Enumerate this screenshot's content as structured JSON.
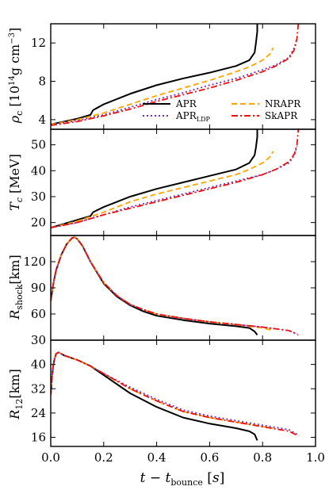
{
  "chart_data": {
    "type": "line",
    "shared_x": {
      "xlabel": "t − t_bounce [s]",
      "xlim": [
        0.0,
        1.0
      ],
      "xticks": [
        "0.0",
        "0.2",
        "0.4",
        "0.6",
        "0.8",
        "1.0"
      ]
    },
    "legend": {
      "placement": "inside panel 1, lower-right",
      "entries": [
        {
          "name": "APR",
          "color": "#000000",
          "dash": "solid"
        },
        {
          "name": "NRAPR",
          "color": "#FFA500",
          "dash": "dashed"
        },
        {
          "name": "APR_LDP",
          "color": "#7B2FB5",
          "dash": "dotted"
        },
        {
          "name": "SkAPR",
          "color": "#EE1111",
          "dash": "dashdot"
        }
      ]
    },
    "panels": [
      {
        "ylabel": "ρ_c [10^14 g cm^-3]",
        "ylim": [
          3,
          14
        ],
        "yticks": [
          4,
          8,
          12
        ],
        "series": [
          {
            "name": "APR",
            "x": [
              0.0,
              0.05,
              0.1,
              0.15,
              0.16,
              0.18,
              0.2,
              0.3,
              0.4,
              0.5,
              0.6,
              0.7,
              0.75,
              0.77,
              0.775,
              0.78,
              0.78
            ],
            "y": [
              3.5,
              3.8,
              4.1,
              4.5,
              5.0,
              5.3,
              5.6,
              6.7,
              7.6,
              8.3,
              8.9,
              9.6,
              10.2,
              11.0,
              12.0,
              13.2,
              14.0
            ]
          },
          {
            "name": "NRAPR",
            "x": [
              0.0,
              0.1,
              0.2,
              0.3,
              0.4,
              0.5,
              0.6,
              0.7,
              0.75,
              0.8,
              0.83,
              0.84
            ],
            "y": [
              3.5,
              4.0,
              4.7,
              5.6,
              6.5,
              7.3,
              8.1,
              9.0,
              9.5,
              10.2,
              10.9,
              11.5
            ]
          },
          {
            "name": "APR_LDP",
            "x": [
              0.0,
              0.1,
              0.2,
              0.3,
              0.4,
              0.5,
              0.6,
              0.7,
              0.8,
              0.85,
              0.9,
              0.92,
              0.93
            ],
            "y": [
              3.5,
              3.9,
              4.5,
              5.3,
              6.1,
              6.8,
              7.6,
              8.3,
              9.2,
              9.7,
              10.5,
              11.5,
              12.5
            ]
          },
          {
            "name": "SkAPR",
            "x": [
              0.0,
              0.1,
              0.2,
              0.3,
              0.4,
              0.5,
              0.6,
              0.7,
              0.8,
              0.85,
              0.9,
              0.92,
              0.93,
              0.935
            ],
            "y": [
              3.4,
              3.8,
              4.4,
              5.1,
              5.9,
              6.6,
              7.3,
              8.1,
              9.0,
              9.6,
              10.4,
              11.3,
              12.5,
              14.0
            ]
          }
        ]
      },
      {
        "ylabel": "T_c [MeV]",
        "ylim": [
          15,
          56
        ],
        "yticks": [
          20,
          30,
          40,
          50
        ],
        "series": [
          {
            "name": "APR",
            "x": [
              0.0,
              0.05,
              0.1,
              0.15,
              0.16,
              0.18,
              0.2,
              0.3,
              0.4,
              0.5,
              0.6,
              0.7,
              0.75,
              0.77,
              0.775,
              0.78,
              0.78
            ],
            "y": [
              18,
              19.5,
              21,
              22.5,
              24,
              25,
              26,
              30,
              33,
              35.5,
              38,
              40.5,
              43,
              46,
              49,
              53,
              56
            ]
          },
          {
            "name": "NRAPR",
            "x": [
              0.0,
              0.1,
              0.2,
              0.3,
              0.4,
              0.5,
              0.6,
              0.7,
              0.75,
              0.8,
              0.83,
              0.84
            ],
            "y": [
              18,
              20.5,
              24,
              28,
              31,
              33.5,
              36,
              38.5,
              40.5,
              43,
              45.5,
              47.5
            ]
          },
          {
            "name": "APR_LDP",
            "x": [
              0.0,
              0.1,
              0.2,
              0.3,
              0.4,
              0.5,
              0.6,
              0.7,
              0.8,
              0.85,
              0.9,
              0.92,
              0.93
            ],
            "y": [
              18,
              20,
              23,
              26,
              28.5,
              31,
              33.5,
              36,
              38.5,
              40.5,
              43,
              46,
              49.5
            ]
          },
          {
            "name": "SkAPR",
            "x": [
              0.0,
              0.1,
              0.2,
              0.3,
              0.4,
              0.5,
              0.6,
              0.7,
              0.8,
              0.85,
              0.9,
              0.92,
              0.93,
              0.935
            ],
            "y": [
              18,
              20,
              23,
              25.5,
              28,
              30.5,
              33,
              35.5,
              38.5,
              40.5,
              43.5,
              46.5,
              50,
              56
            ]
          }
        ]
      },
      {
        "ylabel": "R_shock [km]",
        "ylim": [
          30,
          150
        ],
        "yticks": [
          30,
          60,
          90,
          120
        ],
        "series": [
          {
            "name": "APR",
            "x": [
              0.0,
              0.01,
              0.02,
              0.04,
              0.06,
              0.08,
              0.09,
              0.1,
              0.12,
              0.15,
              0.2,
              0.25,
              0.3,
              0.35,
              0.4,
              0.5,
              0.6,
              0.7,
              0.75,
              0.77,
              0.78
            ],
            "y": [
              75,
              95,
              110,
              128,
              140,
              147,
              148,
              146,
              138,
              120,
              95,
              80,
              70,
              63,
              58,
              53,
              49,
              46,
              44,
              40,
              36
            ]
          },
          {
            "name": "NRAPR",
            "x": [
              0.0,
              0.01,
              0.02,
              0.04,
              0.06,
              0.08,
              0.09,
              0.1,
              0.12,
              0.15,
              0.2,
              0.25,
              0.3,
              0.35,
              0.4,
              0.5,
              0.6,
              0.7,
              0.8,
              0.84
            ],
            "y": [
              75,
              95,
              110,
              128,
              140,
              147,
              148,
              146,
              138,
              120,
              96,
              81,
              71,
              65,
              60,
              55,
              51,
              48,
              44,
              41
            ]
          },
          {
            "name": "APR_LDP",
            "x": [
              0.0,
              0.01,
              0.02,
              0.04,
              0.06,
              0.08,
              0.09,
              0.1,
              0.12,
              0.15,
              0.2,
              0.25,
              0.3,
              0.35,
              0.4,
              0.5,
              0.6,
              0.7,
              0.8,
              0.9,
              0.93
            ],
            "y": [
              75,
              95,
              110,
              128,
              140,
              147,
              148,
              146,
              138,
              120,
              96,
              81,
              71,
              65,
              60,
              55,
              51,
              48,
              45,
              41,
              37
            ]
          },
          {
            "name": "SkAPR",
            "x": [
              0.0,
              0.01,
              0.02,
              0.04,
              0.06,
              0.08,
              0.09,
              0.1,
              0.12,
              0.15,
              0.2,
              0.25,
              0.3,
              0.35,
              0.4,
              0.5,
              0.6,
              0.7,
              0.8,
              0.9,
              0.935
            ],
            "y": [
              75,
              95,
              110,
              128,
              140,
              147,
              148,
              146,
              138,
              120,
              96,
              81,
              71,
              65,
              60,
              55,
              51,
              48,
              45,
              41,
              36
            ]
          }
        ]
      },
      {
        "ylabel": "R_12 [km]",
        "ylim": [
          13,
          48
        ],
        "yticks": [
          16,
          24,
          32,
          40
        ],
        "series": [
          {
            "name": "APR",
            "x": [
              0.0,
              0.005,
              0.01,
              0.015,
              0.02,
              0.03,
              0.05,
              0.1,
              0.15,
              0.2,
              0.3,
              0.4,
              0.5,
              0.6,
              0.7,
              0.75,
              0.77,
              0.78
            ],
            "y": [
              30,
              36,
              40,
              42,
              43.5,
              44,
              43,
              41.5,
              39.5,
              36.5,
              30.5,
              26,
              22.5,
              20.5,
              19,
              18,
              17,
              15
            ]
          },
          {
            "name": "NRAPR",
            "x": [
              0.0,
              0.005,
              0.01,
              0.015,
              0.02,
              0.03,
              0.05,
              0.1,
              0.15,
              0.2,
              0.3,
              0.4,
              0.5,
              0.6,
              0.7,
              0.8,
              0.84
            ],
            "y": [
              30,
              36,
              40,
              42,
              43.5,
              44,
              43,
              41.5,
              39.5,
              37,
              32,
              28,
              24.5,
              22.5,
              21,
              19.5,
              19
            ]
          },
          {
            "name": "APR_LDP",
            "x": [
              0.0,
              0.005,
              0.01,
              0.015,
              0.02,
              0.03,
              0.05,
              0.1,
              0.15,
              0.2,
              0.3,
              0.4,
              0.5,
              0.6,
              0.7,
              0.8,
              0.9,
              0.93
            ],
            "y": [
              30,
              36,
              40,
              42,
              43.5,
              44,
              43,
              41.5,
              39.5,
              37,
              32.5,
              28.5,
              25,
              23,
              21.5,
              20,
              18.5,
              17
            ]
          },
          {
            "name": "SkAPR",
            "x": [
              0.0,
              0.005,
              0.01,
              0.015,
              0.02,
              0.03,
              0.05,
              0.1,
              0.15,
              0.2,
              0.3,
              0.4,
              0.5,
              0.6,
              0.7,
              0.8,
              0.9,
              0.935
            ],
            "y": [
              30,
              36,
              40,
              42,
              43.5,
              44,
              43,
              41.5,
              39.5,
              37,
              32,
              28,
              24.5,
              22.5,
              21,
              19.5,
              18,
              16.5
            ]
          }
        ]
      }
    ]
  }
}
